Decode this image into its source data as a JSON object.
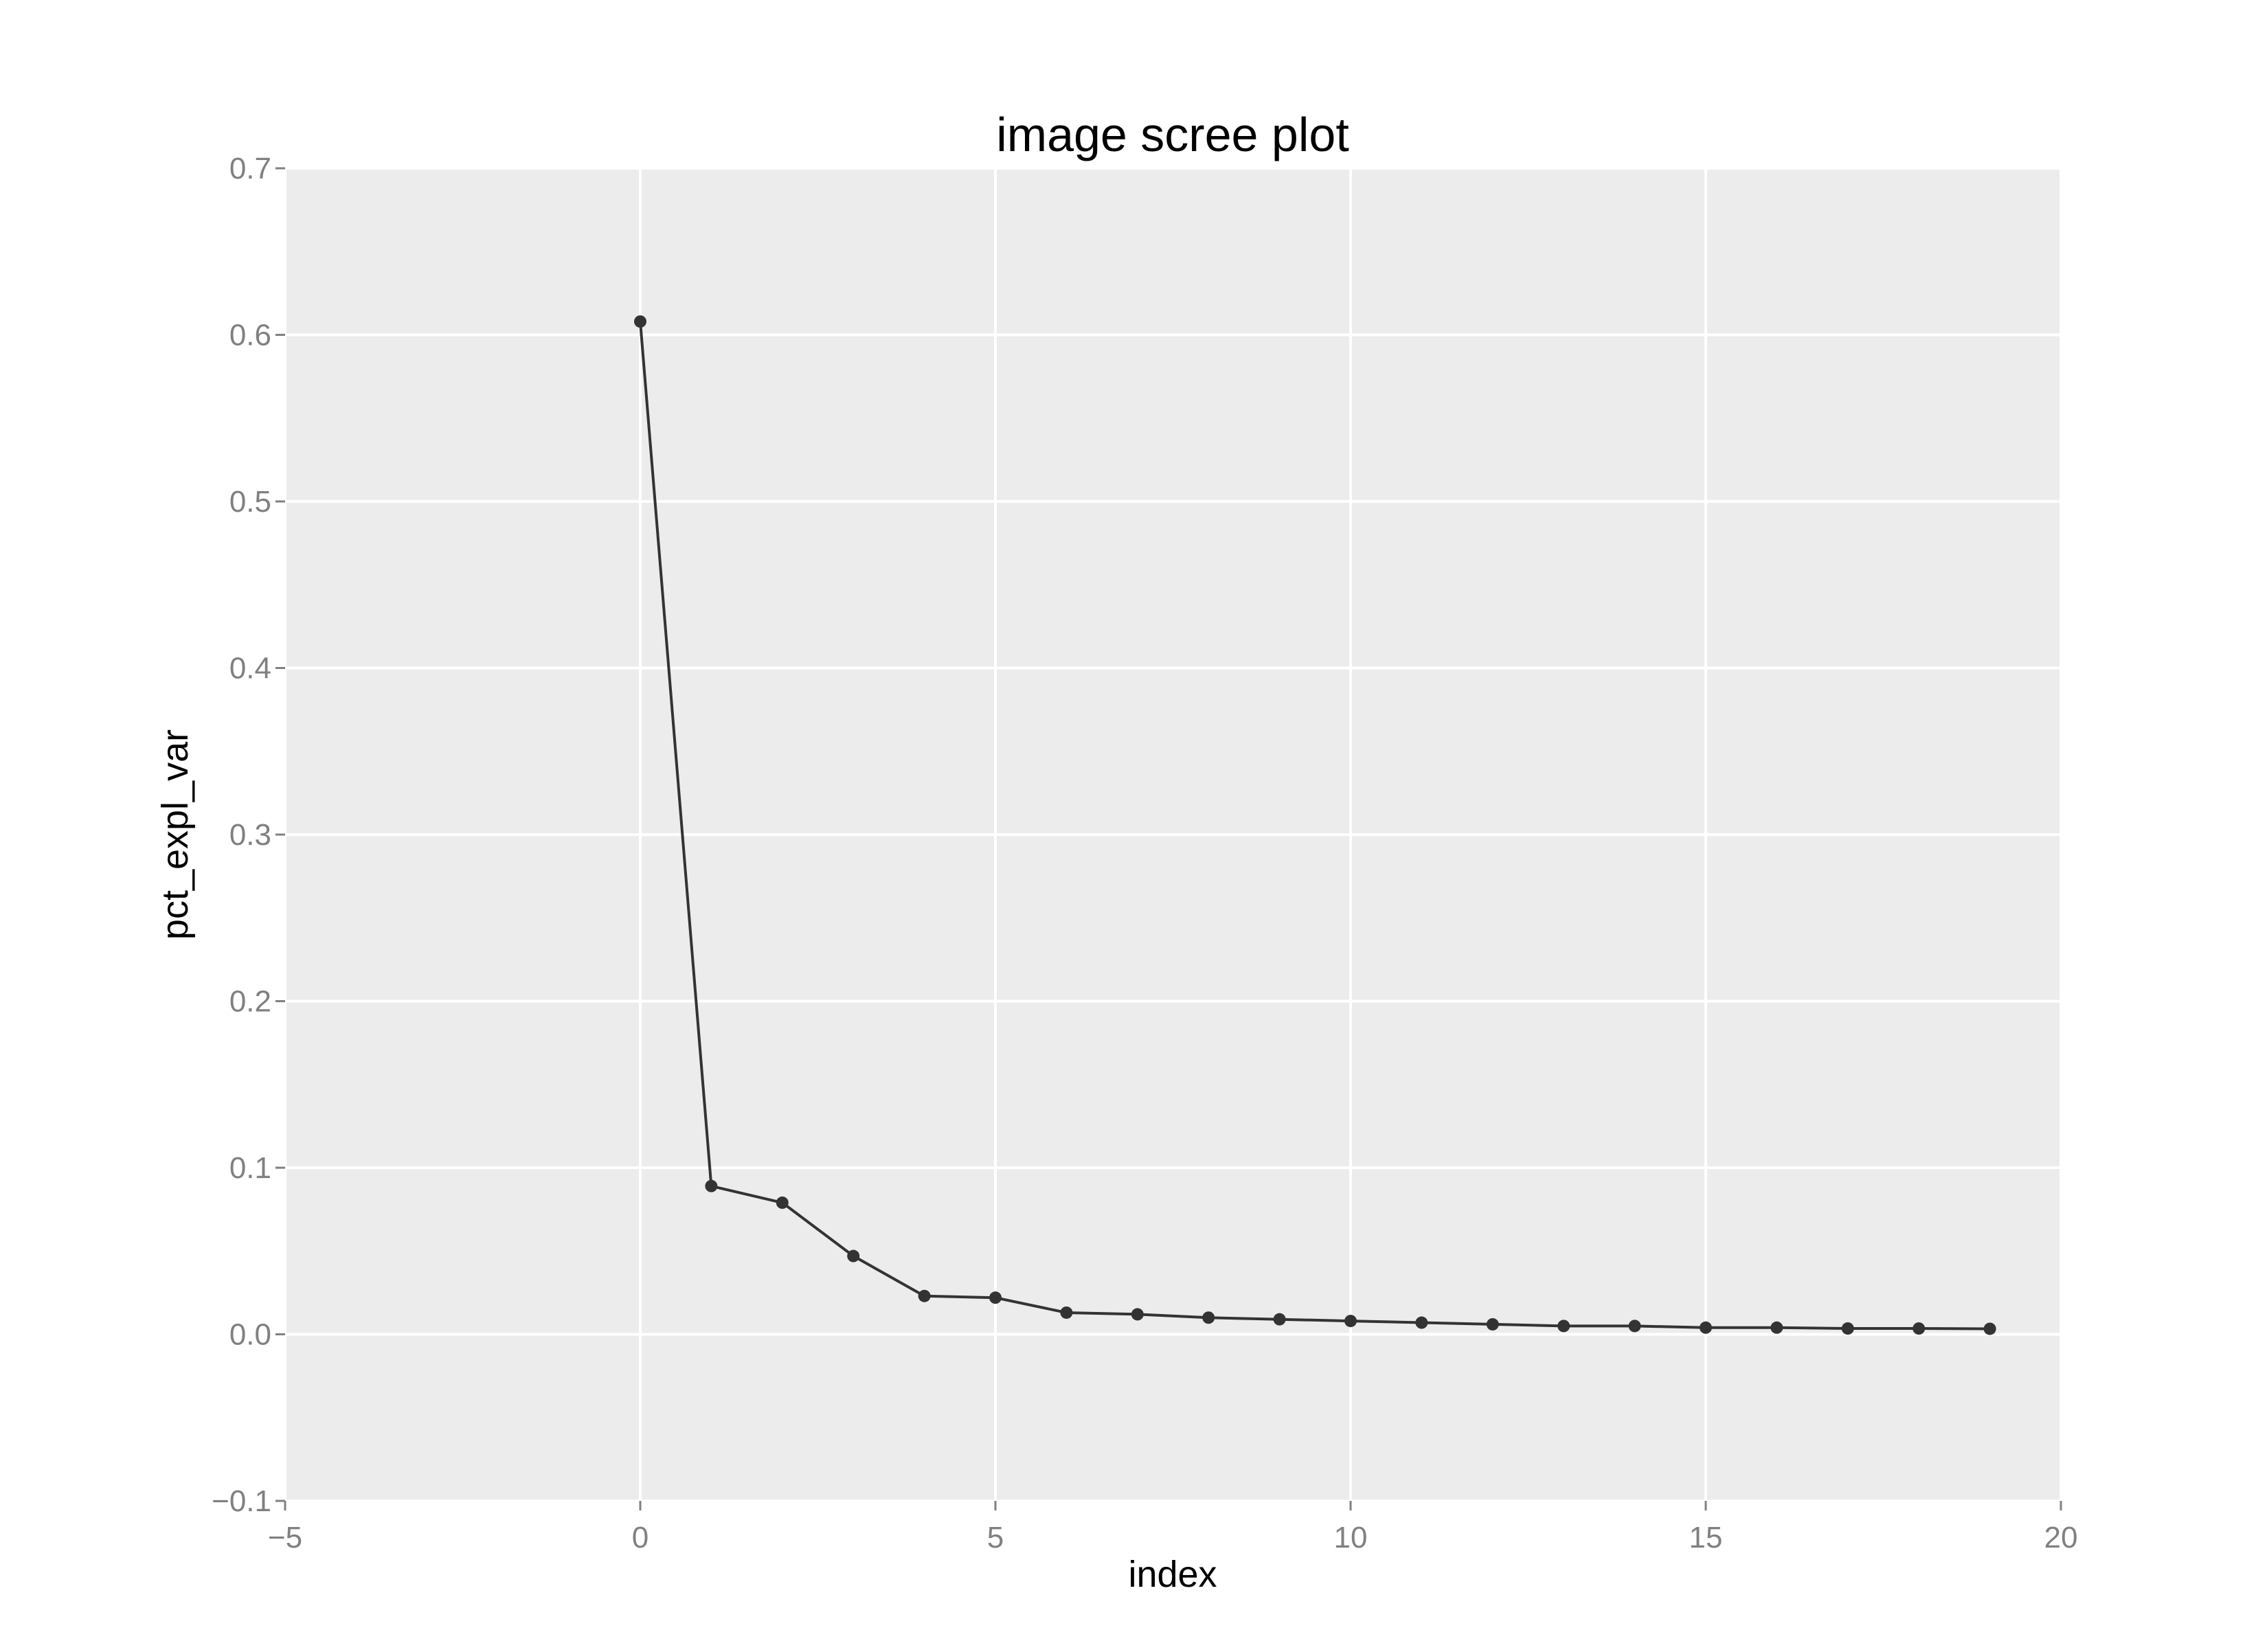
{
  "chart_data": {
    "type": "line",
    "title": "image scree plot",
    "xlabel": "index",
    "ylabel": "pct_expl_var",
    "xlim": [
      -5,
      20
    ],
    "ylim": [
      -0.1,
      0.7
    ],
    "xticks": [
      -5,
      0,
      5,
      10,
      15,
      20
    ],
    "xtick_labels": [
      "−5",
      "0",
      "5",
      "10",
      "15",
      "20"
    ],
    "yticks": [
      -0.1,
      0.0,
      0.1,
      0.2,
      0.3,
      0.4,
      0.5,
      0.6,
      0.7
    ],
    "ytick_labels": [
      "−0.1",
      "0.0",
      "0.1",
      "0.2",
      "0.3",
      "0.4",
      "0.5",
      "0.6",
      "0.7"
    ],
    "grid": true,
    "markers": true,
    "colors": {
      "panel_background": "#ececec",
      "grid": "#ffffff",
      "line": "#333333",
      "point": "#333333"
    },
    "series": [
      {
        "x": [
          0,
          1,
          2,
          3,
          4,
          5,
          6,
          7,
          8,
          9,
          10,
          11,
          12,
          13,
          14,
          15,
          16,
          17,
          18,
          19
        ],
        "y": [
          0.608,
          0.089,
          0.079,
          0.047,
          0.023,
          0.022,
          0.013,
          0.012,
          0.01,
          0.009,
          0.008,
          0.007,
          0.006,
          0.005,
          0.005,
          0.004,
          0.004,
          0.0035,
          0.0035,
          0.0033
        ]
      }
    ]
  }
}
